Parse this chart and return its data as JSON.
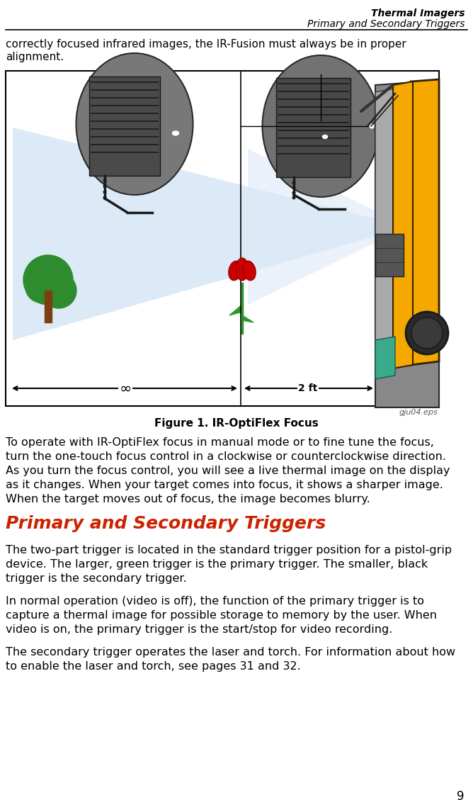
{
  "header_line1": "Thermal Imagers",
  "header_line2": "Primary and Secondary Triggers",
  "page_number": "9",
  "intro_lines": [
    "correctly focused infrared images, the IR-Fusion must always be in proper",
    "alignment."
  ],
  "figure_label": "Figure 1. IR-OptiFlex Focus",
  "figure_source_label": "gju04.eps",
  "para1_lines": [
    "To operate with IR-OptiFlex focus in manual mode or to fine tune the focus,",
    "turn the one-touch focus control in a clockwise or counterclockwise direction.",
    "As you turn the focus control, you will see a live thermal image on the display",
    "as it changes. When your target comes into focus, it shows a sharper image.",
    "When the target moves out of focus, the image becomes blurry."
  ],
  "section_heading": "Primary and Secondary Triggers",
  "para2_lines": [
    "The two-part trigger is located in the standard trigger position for a pistol-grip",
    "device. The larger, green trigger is the primary trigger. The smaller, black",
    "trigger is the secondary trigger."
  ],
  "para3_lines": [
    "In normal operation (video is off), the function of the primary trigger is to",
    "capture a thermal image for possible storage to memory by the user. When",
    "video is on, the primary trigger is the start/stop for video recording."
  ],
  "para4_lines": [
    "The secondary trigger operates the laser and torch. For information about how",
    "to enable the laser and torch, see pages 31 and 32."
  ],
  "bg_color": "#ffffff",
  "text_color": "#000000",
  "heading_color": "#cc2200",
  "light_beam_color": "#dce9f7",
  "tree_green": "#2e8b2e",
  "tree_trunk": "#7b3f10",
  "tulip_red": "#cc0000",
  "tulip_green": "#2a9a2a",
  "yellow_device": "#f5a800",
  "green_teal": "#3aaa8a",
  "oval_fill": "#7a7a7a",
  "oval_dark": "#3a3a3a"
}
